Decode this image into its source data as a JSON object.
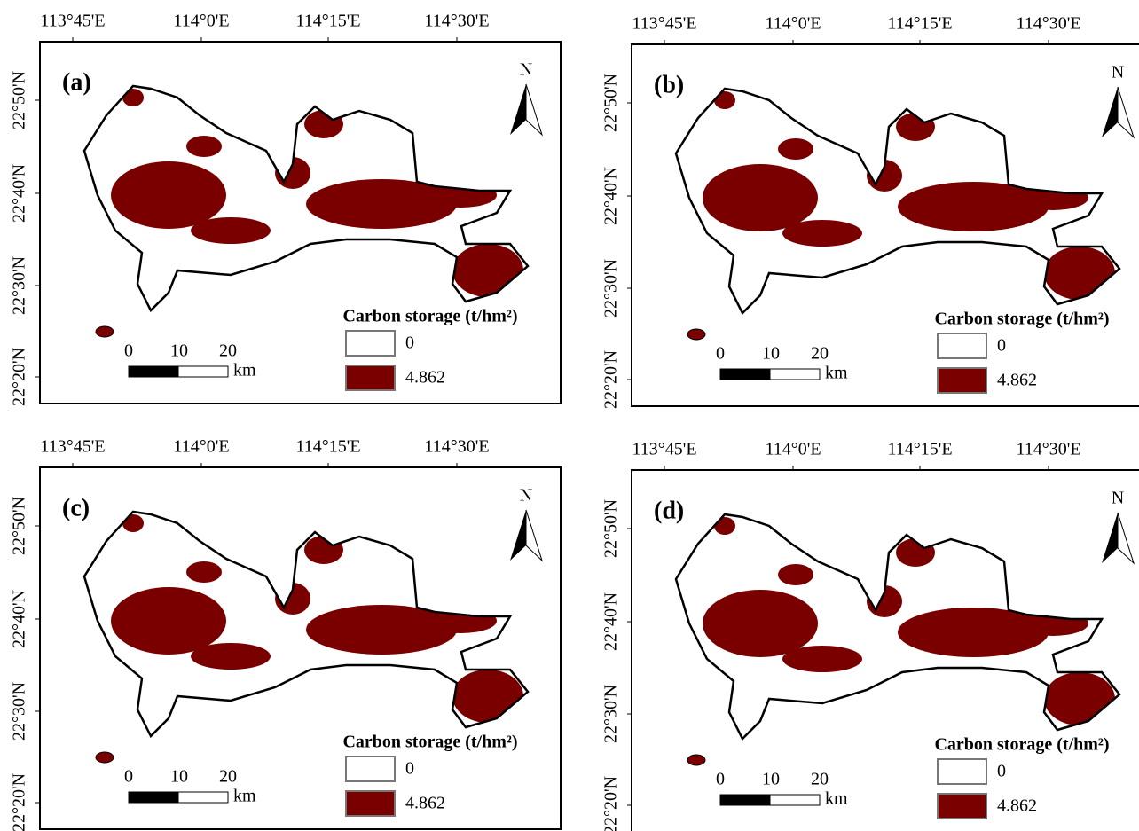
{
  "panels": [
    {
      "label": "(a)",
      "lon_ticks": [
        "113°45'E",
        "114°0'E",
        "114°15'E",
        "114°30'E"
      ],
      "lat_ticks": [
        "22°50'N",
        "22°40'N",
        "22°30'N",
        "22°20'N"
      ],
      "north": "N",
      "legend": {
        "title": "Carbon storage (t/hm²)",
        "items": [
          "0",
          "4.862"
        ]
      },
      "scale": {
        "ticks": [
          "0",
          "10",
          "20"
        ],
        "unit": "km"
      }
    },
    {
      "label": "(b)",
      "lon_ticks": [
        "113°45'E",
        "114°0'E",
        "114°15'E",
        "114°30'E"
      ],
      "lat_ticks": [
        "22°50'N",
        "22°40'N",
        "22°30'N",
        "22°20'N"
      ],
      "north": "N",
      "legend": {
        "title": "Carbon storage (t/hm²)",
        "items": [
          "0",
          "4.862"
        ]
      },
      "scale": {
        "ticks": [
          "0",
          "10",
          "20"
        ],
        "unit": "km"
      }
    },
    {
      "label": "(c)",
      "lon_ticks": [
        "113°45'E",
        "114°0'E",
        "114°15'E",
        "114°30'E"
      ],
      "lat_ticks": [
        "22°50'N",
        "22°40'N",
        "22°30'N",
        "22°20'N"
      ],
      "north": "N",
      "legend": {
        "title": "Carbon storage (t/hm²)",
        "items": [
          "0",
          "4.862"
        ]
      },
      "scale": {
        "ticks": [
          "0",
          "10",
          "20"
        ],
        "unit": "km"
      }
    },
    {
      "label": "(d)",
      "lon_ticks": [
        "113°45'E",
        "114°0'E",
        "114°15'E",
        "114°30'E"
      ],
      "lat_ticks": [
        "22°50'N",
        "22°40'N",
        "22°30'N",
        "22°20'N"
      ],
      "north": "N",
      "legend": {
        "title": "Carbon storage (t/hm²)",
        "items": [
          "0",
          "4.862"
        ]
      },
      "scale": {
        "ticks": [
          "0",
          "10",
          "20"
        ],
        "unit": "km"
      }
    }
  ]
}
